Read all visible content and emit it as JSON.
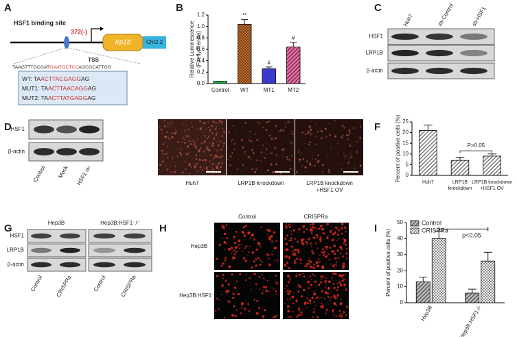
{
  "panel_labels": [
    "A",
    "B",
    "C",
    "D",
    "E",
    "F",
    "G",
    "H",
    "I"
  ],
  "panel_a": {
    "site_label": "HSF1 binding site",
    "position": "372(-)",
    "gene": "Irp1b",
    "chromosome": "Chr2.2",
    "tss": "TSS",
    "sequence": [
      "TAAGTTTGCGAT",
      "GAATGCTCC",
      "AGCGCATTGG"
    ],
    "variants": [
      [
        "WT: TA",
        "ACTTACGAGG",
        "AG"
      ],
      [
        "MUT1: TA",
        "ACTTAACAGG",
        "AG"
      ],
      [
        "MUT2: TA",
        "ACTTATGAGG",
        "AG"
      ]
    ]
  },
  "panel_c": {
    "columns": [
      "Huh7",
      "sh-Control",
      "sh-HSF1"
    ],
    "rows": [
      "HSF1",
      "LRP1B",
      "β-actin"
    ]
  },
  "panel_d": {
    "columns": [
      "Control",
      "Mock",
      "HSF1 ov"
    ],
    "rows": [
      "HSF1",
      "β-actin"
    ]
  },
  "panel_e": {
    "captions": [
      [
        "Huh7"
      ],
      [
        "LRP1B knockdown"
      ],
      [
        "LRP1B knockdown",
        "+HSF1 OV"
      ]
    ]
  },
  "panel_g": {
    "groups": [
      "Hep3B",
      "Hep3B:HSF1⁻/⁻"
    ],
    "rows": [
      "HSF1",
      "LRP1B",
      "β-actin"
    ],
    "columns": [
      "Control",
      "CRISPRa",
      "Control",
      "CRISPRa"
    ]
  },
  "panel_h": {
    "columns": [
      "Control",
      "CRISPRa"
    ],
    "rows": [
      "Hep3B",
      "Hep3B:HSF1⁻/⁻"
    ]
  },
  "chart_data": [
    {
      "type": "bar",
      "ylabel": [
        "Relative Luminescence",
        "(Firefly/Renilla)"
      ],
      "categories": [
        [
          "Control"
        ],
        [
          "WT"
        ],
        [
          "MT1"
        ],
        [
          "MT2"
        ]
      ],
      "values": [
        0.04,
        1.04,
        0.26,
        0.64
      ],
      "errors": [
        0.0,
        0.08,
        0.03,
        0.08
      ],
      "annotations": [
        null,
        "**",
        "#",
        "#"
      ],
      "colors": [
        "#22b14c",
        "#c8702a",
        "#3a3acc",
        "#f06aa8"
      ],
      "patterns": [
        null,
        "checker",
        null,
        "stripes"
      ],
      "ylim": [
        0,
        1.2
      ],
      "yticks": [
        {
          "value": 0,
          "label": "0.0"
        },
        0.2,
        0.4,
        0.6,
        0.8,
        {
          "value": 1,
          "label": "1.0"
        },
        1.2
      ]
    },
    {
      "type": "bar",
      "ylabel": [
        "Percent of positive cells (%)"
      ],
      "categories": [
        [
          "Huh7"
        ],
        [
          "LRP1B",
          "knockdown"
        ],
        [
          "LRP1B knockdown",
          "+HSF1 OV"
        ]
      ],
      "values": [
        21,
        7,
        9
      ],
      "errors": [
        2.5,
        1.5,
        1
      ],
      "annotations": [
        null,
        null,
        null
      ],
      "bracket_label": "P>0.05",
      "colors": [
        "#ffffff",
        "#ffffff",
        "#ffffff"
      ],
      "patterns": [
        "stripes",
        "stripes",
        "stripes"
      ],
      "ylim": [
        0,
        25
      ],
      "yticks": [
        0,
        5,
        10,
        15,
        20,
        25
      ]
    },
    {
      "type": "grouped_bar",
      "ylabel": [
        "Percent of positive cells (%)"
      ],
      "categories": [
        "Hep3B",
        "Hep3B:HSF1-/-"
      ],
      "series": [
        {
          "name": "Control",
          "color": "#bbbbbb",
          "pattern": "stripes",
          "values": [
            13,
            6
          ],
          "errors": [
            3,
            2.5
          ]
        },
        {
          "name": "CRISPRa",
          "color": "#ffffff",
          "pattern": "checker",
          "values": [
            40,
            26
          ],
          "errors": [
            4.5,
            5.5
          ]
        }
      ],
      "bracket_label": "p<0.05",
      "ylim": [
        0,
        50
      ],
      "yticks": [
        0,
        10,
        20,
        30,
        40,
        50
      ]
    }
  ]
}
